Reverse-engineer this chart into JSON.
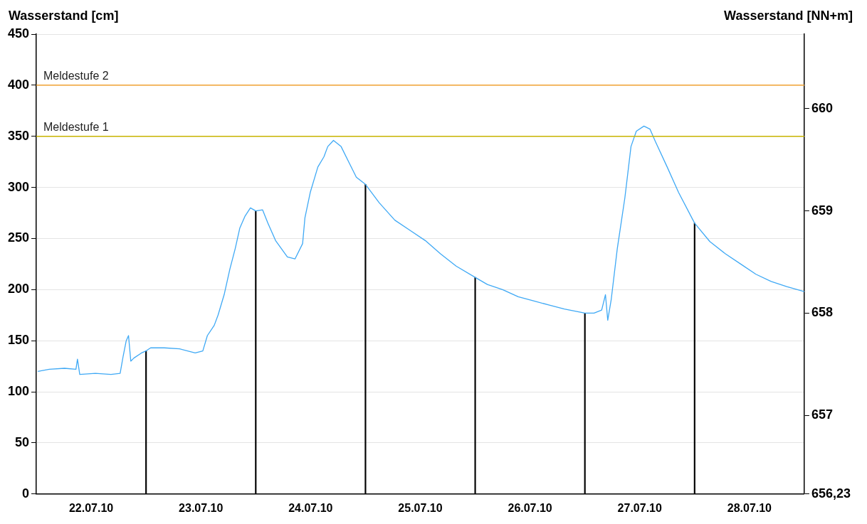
{
  "chart_data": {
    "type": "line",
    "ylabel": "Wasserstand [cm]",
    "y2label": "Wasserstand [NN+m]",
    "xlim": [
      "--07-22T00:00",
      "--07-29T00:00"
    ],
    "xticks": [
      {
        "value": "--07-22T12:00",
        "label": "22.07.10"
      },
      {
        "value": "--07-23T12:00",
        "label": "23.07.10"
      },
      {
        "value": "--07-24T12:00",
        "label": "24.07.10"
      },
      {
        "value": "--07-25T12:00",
        "label": "25.07.10"
      },
      {
        "value": "--07-26T12:00",
        "label": "26.07.10"
      },
      {
        "value": "--07-27T12:00",
        "label": "27.07.10"
      },
      {
        "value": "--07-28T12:00",
        "label": "28.07.10"
      }
    ],
    "ylim": [
      0,
      450
    ],
    "yticks": [
      0,
      50,
      100,
      150,
      200,
      250,
      300,
      350,
      400,
      450
    ],
    "y2lim": [
      656.23,
      660.73
    ],
    "y2ticks": [
      {
        "value": 656.23,
        "label": "656,23"
      },
      657,
      658,
      659,
      660
    ],
    "grid": "y",
    "legend": false,
    "marker": "none",
    "line_style": "solid",
    "ref_lines": [
      {
        "axis": "y",
        "value": 400,
        "label": "Meldestufe 2",
        "color": "#f0a030"
      },
      {
        "axis": "y",
        "value": 350,
        "label": "Meldestufe 1",
        "color": "#c8b400"
      }
    ],
    "series": [
      {
        "color": "#3fa9f5",
        "x": [
          "--07-22T00:20",
          "--07-22T02:50",
          "--07-22T06:10",
          "--07-22T08:40",
          "--07-22T09:00",
          "--07-22T09:30",
          "--07-22T12:55",
          "--07-22T16:20",
          "--07-22T18:20",
          "--07-22T19:00",
          "--07-22T19:40",
          "--07-22T20:10",
          "--07-22T20:40",
          "--07-22T21:20",
          "--07-22T23:00",
          "--07-23T00:00",
          "--07-23T01:00",
          "--07-23T04:00",
          "--07-23T07:20",
          "--07-23T10:45",
          "--07-23T12:25",
          "--07-23T13:25",
          "--07-23T14:55",
          "--07-23T15:45",
          "--07-23T17:05",
          "--07-23T18:20",
          "--07-23T19:30",
          "--07-23T20:30",
          "--07-23T21:40",
          "--07-23T22:50",
          "--07-24T00:00",
          "--07-24T01:30",
          "--07-24T02:40",
          "--07-24T04:20",
          "--07-24T06:55",
          "--07-24T08:35",
          "--07-24T10:15",
          "--07-24T10:45",
          "--07-24T11:55",
          "--07-24T13:35",
          "--07-24T14:55",
          "--07-24T15:45",
          "--07-24T17:00",
          "--07-24T18:40",
          "--07-24T20:20",
          "--07-24T22:00",
          "--07-25T00:00",
          "--07-25T03:00",
          "--07-25T06:25",
          "--07-25T09:45",
          "--07-25T13:05",
          "--07-25T16:25",
          "--07-25T19:50",
          "--07-26T00:00",
          "--07-26T02:40",
          "--07-26T06:00",
          "--07-26T09:25",
          "--07-26T12:45",
          "--07-26T16:05",
          "--07-26T19:30",
          "--07-26T22:50",
          "--07-27T00:00",
          "--07-27T02:00",
          "--07-27T03:40",
          "--07-27T04:30",
          "--07-27T05:00",
          "--07-27T05:45",
          "--07-27T07:05",
          "--07-27T08:45",
          "--07-27T10:05",
          "--07-27T11:15",
          "--07-27T12:55",
          "--07-27T14:15",
          "--07-27T15:25",
          "--07-27T18:00",
          "--07-27T20:30",
          "--07-28T00:00",
          "--07-28T03:20",
          "--07-28T06:45",
          "--07-28T10:05",
          "--07-28T13:25",
          "--07-28T16:45",
          "--07-28T20:10",
          "--07-29T00:00"
        ],
        "values": [
          120,
          122,
          123,
          122,
          132,
          117,
          118,
          117,
          118,
          135,
          150,
          155,
          130,
          133,
          138,
          140,
          143,
          143,
          142,
          138,
          140,
          155,
          165,
          175,
          195,
          220,
          240,
          260,
          272,
          280,
          277,
          278,
          265,
          248,
          232,
          230,
          245,
          270,
          295,
          320,
          330,
          340,
          346,
          340,
          325,
          310,
          303,
          285,
          268,
          258,
          248,
          235,
          223,
          212,
          205,
          200,
          193,
          189,
          185,
          181,
          178,
          177,
          177,
          180,
          195,
          170,
          190,
          240,
          290,
          340,
          355,
          360,
          357,
          345,
          320,
          295,
          265,
          247,
          235,
          225,
          215,
          208,
          203,
          198
        ]
      },
      {
        "type": "bar",
        "color": "#000000",
        "x": [
          "--07-23T00:00",
          "--07-24T00:00",
          "--07-25T00:00",
          "--07-26T00:00",
          "--07-27T00:00",
          "--07-28T00:00"
        ],
        "values": [
          140,
          277,
          303,
          212,
          177,
          265
        ]
      }
    ]
  }
}
